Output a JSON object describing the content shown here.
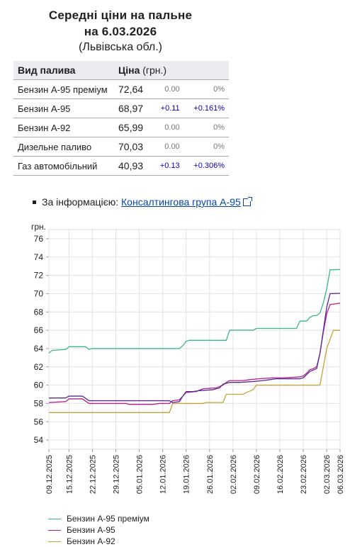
{
  "title": {
    "line1": "Середні ціни на пальне",
    "line2": "на 6.03.2026",
    "line3": "(Львівська обл.)"
  },
  "table": {
    "col_fuel": "Вид палива",
    "col_price": "Ціна",
    "col_unit": "(грн.)",
    "rows": [
      {
        "fuel": "Бензин А-95 преміум",
        "price": "72,64",
        "diff": "0.00",
        "pct": "0%"
      },
      {
        "fuel": "Бензин А-95",
        "price": "68,97",
        "diff": "+0.11",
        "pct": "+0.161%"
      },
      {
        "fuel": "Бензин А-92",
        "price": "65,99",
        "diff": "0.00",
        "pct": "0%"
      },
      {
        "fuel": "Дизельне паливо",
        "price": "70,03",
        "diff": "0.00",
        "pct": "0%"
      },
      {
        "fuel": "Газ автомобільний",
        "price": "40,93",
        "diff": "+0.13",
        "pct": "+0.306%"
      }
    ]
  },
  "source": {
    "prefix": "За інформацією:",
    "link": "Консалтингова група А-95"
  },
  "chart_data": {
    "type": "line",
    "ylabel": "грн.",
    "ylim": [
      53,
      77
    ],
    "yticks": [
      54,
      56,
      58,
      60,
      62,
      64,
      66,
      68,
      70,
      72,
      74,
      76
    ],
    "xlim": [
      "2025-12-09",
      "2026-03-06"
    ],
    "xticks": [
      "09.12.2025",
      "15.12.2025",
      "22.12.2025",
      "29.12.2025",
      "05.01.2026",
      "12.01.2026",
      "19.01.2026",
      "26.01.2026",
      "02.02.2026",
      "09.02.2026",
      "16.02.2026",
      "23.02.2026",
      "02.03.2026",
      "06.03.2026"
    ],
    "grid": true,
    "legend": "bottom-left",
    "series": [
      {
        "name": "Бензин А-95 преміум",
        "color": "#3cb58f",
        "points": [
          [
            "2025-12-09",
            63.5
          ],
          [
            "2025-12-10",
            63.8
          ],
          [
            "2025-12-14",
            63.9
          ],
          [
            "2025-12-15",
            64.2
          ],
          [
            "2025-12-20",
            64.2
          ],
          [
            "2025-12-21",
            63.9
          ],
          [
            "2025-12-22",
            64.0
          ],
          [
            "2026-01-17",
            64.0
          ],
          [
            "2026-01-18",
            64.3
          ],
          [
            "2026-01-19",
            64.8
          ],
          [
            "2026-01-20",
            64.9
          ],
          [
            "2026-01-31",
            64.9
          ],
          [
            "2026-02-01",
            66.0
          ],
          [
            "2026-02-08",
            66.0
          ],
          [
            "2026-02-09",
            66.2
          ],
          [
            "2026-02-21",
            66.2
          ],
          [
            "2026-02-22",
            67.0
          ],
          [
            "2026-02-24",
            67.0
          ],
          [
            "2026-02-25",
            67.4
          ],
          [
            "2026-02-26",
            67.6
          ],
          [
            "2026-02-27",
            67.6
          ],
          [
            "2026-02-28",
            67.9
          ],
          [
            "2026-03-01",
            69.0
          ],
          [
            "2026-03-02",
            70.5
          ],
          [
            "2026-03-03",
            72.6
          ],
          [
            "2026-03-06",
            72.64
          ]
        ]
      },
      {
        "name": "Бензин А-95",
        "color": "#b3208e",
        "points": [
          [
            "2025-12-09",
            58.1
          ],
          [
            "2025-12-14",
            58.2
          ],
          [
            "2025-12-15",
            58.5
          ],
          [
            "2025-12-19",
            58.5
          ],
          [
            "2025-12-21",
            58.0
          ],
          [
            "2026-01-01",
            58.0
          ],
          [
            "2026-01-02",
            57.9
          ],
          [
            "2026-01-09",
            57.9
          ],
          [
            "2026-01-11",
            58.0
          ],
          [
            "2026-01-14",
            58.0
          ],
          [
            "2026-01-15",
            58.3
          ],
          [
            "2026-01-17",
            58.4
          ],
          [
            "2026-01-18",
            58.8
          ],
          [
            "2026-01-19",
            59.2
          ],
          [
            "2026-01-22",
            59.3
          ],
          [
            "2026-01-24",
            59.6
          ],
          [
            "2026-01-28",
            59.7
          ],
          [
            "2026-01-30",
            60.0
          ],
          [
            "2026-01-31",
            60.3
          ],
          [
            "2026-02-01",
            60.5
          ],
          [
            "2026-02-05",
            60.5
          ],
          [
            "2026-02-07",
            60.6
          ],
          [
            "2026-02-10",
            60.7
          ],
          [
            "2026-02-14",
            60.8
          ],
          [
            "2026-02-17",
            60.8
          ],
          [
            "2026-02-22",
            60.9
          ],
          [
            "2026-02-23",
            61.0
          ],
          [
            "2026-02-24",
            61.3
          ],
          [
            "2026-02-25",
            61.7
          ],
          [
            "2026-02-26",
            61.8
          ],
          [
            "2026-02-27",
            62.0
          ],
          [
            "2026-02-28",
            63.5
          ],
          [
            "2026-03-01",
            65.8
          ],
          [
            "2026-03-02",
            67.8
          ],
          [
            "2026-03-03",
            68.8
          ],
          [
            "2026-03-06",
            68.97
          ]
        ]
      },
      {
        "name": "Бензин А-92",
        "color": "#c5a235",
        "points": [
          [
            "2025-12-09",
            57.0
          ],
          [
            "2026-01-14",
            57.0
          ],
          [
            "2026-01-15",
            58.0
          ],
          [
            "2026-01-24",
            58.0
          ],
          [
            "2026-01-25",
            58.1
          ],
          [
            "2026-01-30",
            58.1
          ],
          [
            "2026-01-31",
            59.0
          ],
          [
            "2026-02-05",
            59.0
          ],
          [
            "2026-02-06",
            59.2
          ],
          [
            "2026-02-08",
            59.5
          ],
          [
            "2026-02-09",
            60.0
          ],
          [
            "2026-02-28",
            60.0
          ],
          [
            "2026-03-01",
            62.0
          ],
          [
            "2026-03-02",
            64.0
          ],
          [
            "2026-03-04",
            66.0
          ],
          [
            "2026-03-06",
            65.99
          ]
        ]
      },
      {
        "name": "",
        "color": "#5b2a8f",
        "points": [
          [
            "2025-12-09",
            58.6
          ],
          [
            "2025-12-14",
            58.6
          ],
          [
            "2025-12-15",
            58.8
          ],
          [
            "2025-12-19",
            58.8
          ],
          [
            "2025-12-21",
            58.3
          ],
          [
            "2026-01-14",
            58.3
          ],
          [
            "2026-01-15",
            58.1
          ],
          [
            "2026-01-17",
            58.2
          ],
          [
            "2026-01-18",
            58.8
          ],
          [
            "2026-01-19",
            59.3
          ],
          [
            "2026-01-21",
            59.3
          ],
          [
            "2026-01-23",
            59.4
          ],
          [
            "2026-01-27",
            59.5
          ],
          [
            "2026-01-29",
            59.7
          ],
          [
            "2026-01-30",
            60.1
          ],
          [
            "2026-02-01",
            60.3
          ],
          [
            "2026-02-04",
            60.3
          ],
          [
            "2026-02-08",
            60.4
          ],
          [
            "2026-02-11",
            60.5
          ],
          [
            "2026-02-15",
            60.7
          ],
          [
            "2026-02-19",
            60.7
          ],
          [
            "2026-02-22",
            60.7
          ],
          [
            "2026-02-23",
            60.8
          ],
          [
            "2026-02-25",
            61.5
          ],
          [
            "2026-02-27",
            61.8
          ],
          [
            "2026-02-28",
            63.5
          ],
          [
            "2026-03-01",
            66.0
          ],
          [
            "2026-03-02",
            68.5
          ],
          [
            "2026-03-03",
            70.0
          ],
          [
            "2026-03-06",
            70.03
          ]
        ]
      }
    ]
  }
}
